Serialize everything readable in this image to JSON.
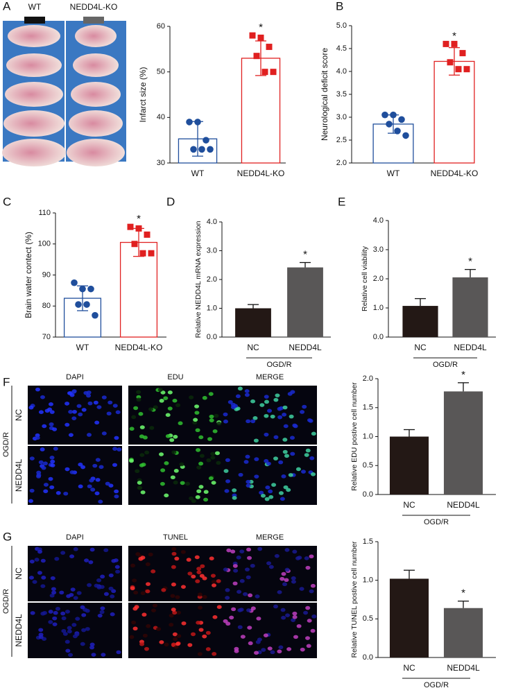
{
  "panel_letters": [
    "A",
    "B",
    "C",
    "D",
    "E",
    "F",
    "G"
  ],
  "image_a": {
    "labels": [
      "WT",
      "NEDD4L-KO"
    ]
  },
  "image_f": {
    "columns": [
      "DAPI",
      "EDU",
      "MERGE"
    ],
    "rows": [
      "NC",
      "NEDD4L"
    ],
    "group": "OGD/R"
  },
  "image_g": {
    "columns": [
      "DAPI",
      "TUNEL",
      "MERGE"
    ],
    "rows": [
      "NC",
      "NEDD4L"
    ],
    "group": "OGD/R"
  },
  "chart_data": [
    {
      "type": "bar",
      "ylabel": "Infarct size (%)",
      "categories": [
        "WT",
        "NEDD4L-KO"
      ],
      "values": [
        35.3,
        53
      ],
      "errors": [
        3.8,
        3.8
      ],
      "points": [
        [
          39,
          39,
          35,
          33,
          33,
          33
        ],
        [
          58,
          57.5,
          55.5,
          53.5,
          50,
          50
        ]
      ],
      "markers": [
        "circle",
        "square"
      ],
      "colors": [
        "#1f4e9c",
        "#e02020"
      ],
      "filled": false,
      "annotation": "*",
      "ylim": [
        30,
        60
      ],
      "yticks": [
        30,
        40,
        50,
        60
      ]
    },
    {
      "type": "bar",
      "ylabel": "Neurological deficit score",
      "categories": [
        "WT",
        "NEDD4L-KO"
      ],
      "values": [
        2.85,
        4.22
      ],
      "errors": [
        0.2,
        0.3
      ],
      "points": [
        [
          3.05,
          3.05,
          2.95,
          2.85,
          2.7,
          2.6
        ],
        [
          4.6,
          4.6,
          4.4,
          4.2,
          4.05,
          4.05
        ]
      ],
      "markers": [
        "circle",
        "square"
      ],
      "colors": [
        "#1f4e9c",
        "#e02020"
      ],
      "filled": false,
      "annotation": "*",
      "ylim": [
        2,
        5
      ],
      "yticks": [
        {
          "value": 2,
          "label": "2.0"
        },
        {
          "value": 2.5,
          "label": "2.5"
        },
        {
          "value": 3,
          "label": "3.0"
        },
        {
          "value": 3.5,
          "label": "3.5"
        },
        {
          "value": 4,
          "label": "4.0"
        },
        {
          "value": 4.5,
          "label": "4.5"
        },
        {
          "value": 5,
          "label": "5.0"
        }
      ]
    },
    {
      "type": "bar",
      "ylabel": "Brain water contect (%)",
      "categories": [
        "WT",
        "NEDD4L-KO"
      ],
      "values": [
        82.5,
        100.5
      ],
      "errors": [
        4,
        4.5
      ],
      "points": [
        [
          87.5,
          85.5,
          85.5,
          80.5,
          80.5,
          77
        ],
        [
          105.5,
          105,
          103,
          100,
          97,
          97
        ]
      ],
      "markers": [
        "circle",
        "square"
      ],
      "colors": [
        "#1f4e9c",
        "#e02020"
      ],
      "filled": false,
      "annotation": "*",
      "ylim": [
        70,
        110
      ],
      "yticks": [
        70,
        80,
        90,
        100,
        110
      ]
    },
    {
      "type": "bar",
      "ylabel": "Relative NEDD4L mRNA expression",
      "categories": [
        "NC",
        "NEDD4L"
      ],
      "values": [
        1.0,
        2.42
      ],
      "errors": [
        0.13,
        0.17
      ],
      "colors": [
        "#231815",
        "#595757"
      ],
      "filled": true,
      "annotation": "*",
      "group": "OGD/R",
      "ylim": [
        0,
        4
      ],
      "yticks": [
        {
          "value": 0,
          "label": "0.0"
        },
        {
          "value": 1,
          "label": "1.0"
        },
        {
          "value": 2,
          "label": "2.0"
        },
        {
          "value": 3,
          "label": "3.0"
        },
        {
          "value": 4,
          "label": "4.0"
        }
      ]
    },
    {
      "type": "bar",
      "ylabel": "Relative cell viability",
      "categories": [
        "NC",
        "NEDD4L"
      ],
      "values": [
        1.07,
        2.05
      ],
      "errors": [
        0.25,
        0.27
      ],
      "colors": [
        "#231815",
        "#595757"
      ],
      "filled": true,
      "annotation": "*",
      "group": "OGD/R",
      "ylim": [
        0,
        4
      ],
      "yticks": [
        {
          "value": 0,
          "label": "0.0"
        },
        {
          "value": 1,
          "label": "1.0"
        },
        {
          "value": 2,
          "label": "2.0"
        },
        {
          "value": 3,
          "label": "3.0"
        },
        {
          "value": 4,
          "label": "4.0"
        }
      ]
    },
    {
      "type": "bar",
      "ylabel": "Relative EDU postive cell number",
      "categories": [
        "NC",
        "NEDD4L"
      ],
      "values": [
        1.0,
        1.78
      ],
      "errors": [
        0.12,
        0.15
      ],
      "colors": [
        "#231815",
        "#595757"
      ],
      "filled": true,
      "annotation": "*",
      "group": "OGD/R",
      "ylim": [
        0,
        2
      ],
      "yticks": [
        {
          "value": 0,
          "label": "0.0"
        },
        {
          "value": 0.5,
          "label": "0.5"
        },
        {
          "value": 1,
          "label": "1.0"
        },
        {
          "value": 1.5,
          "label": "1.5"
        },
        {
          "value": 2,
          "label": "2.0"
        }
      ]
    },
    {
      "type": "bar",
      "ylabel": "Relative TUNEL postive cell number",
      "categories": [
        "NC",
        "NEDD4L"
      ],
      "values": [
        1.02,
        0.64
      ],
      "errors": [
        0.11,
        0.09
      ],
      "colors": [
        "#231815",
        "#595757"
      ],
      "filled": true,
      "annotation": "*",
      "group": "OGD/R",
      "ylim": [
        0,
        1.5
      ],
      "yticks": [
        {
          "value": 0,
          "label": "0.0"
        },
        {
          "value": 0.5,
          "label": "0.5"
        },
        {
          "value": 1,
          "label": "1.0"
        },
        {
          "value": 1.5,
          "label": "1.5"
        }
      ]
    }
  ]
}
